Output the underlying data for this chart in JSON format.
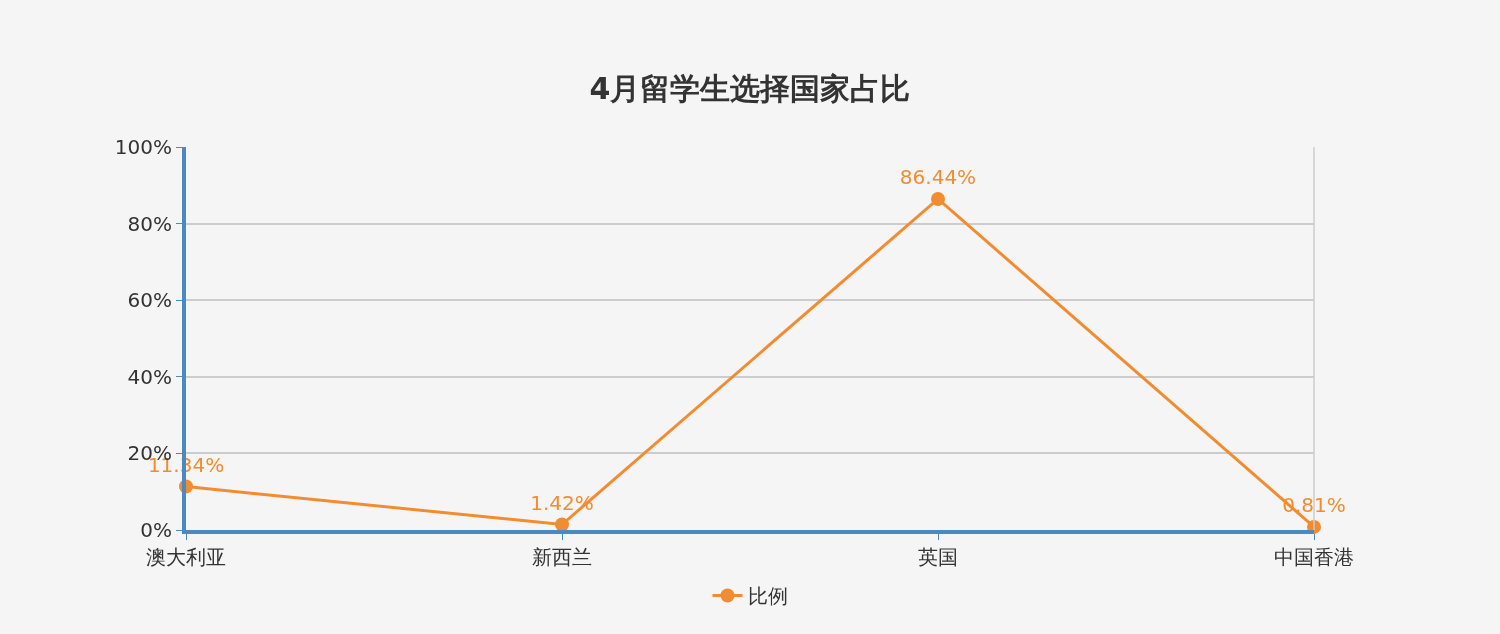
{
  "chart_data": {
    "type": "line",
    "title": "4月留学生选择国家占比",
    "categories": [
      "澳大利亚",
      "新西兰",
      "英国",
      "中国香港"
    ],
    "series": [
      {
        "name": "比例",
        "color": "#f28c30",
        "values": [
          11.34,
          1.42,
          86.44,
          0.81
        ],
        "value_labels": [
          "11.34%",
          "1.42%",
          "86.44%",
          "0.81%"
        ]
      }
    ],
    "ylim": [
      0,
      100
    ],
    "yticks": [
      {
        "value": 0,
        "label": "0%"
      },
      {
        "value": 20,
        "label": "20%"
      },
      {
        "value": 40,
        "label": "40%"
      },
      {
        "value": 60,
        "label": "60%"
      },
      {
        "value": 80,
        "label": "80%"
      },
      {
        "value": 100,
        "label": "100%"
      }
    ],
    "grid": "y",
    "legend": "bottom",
    "marker": "circle",
    "line_style": "solid"
  }
}
